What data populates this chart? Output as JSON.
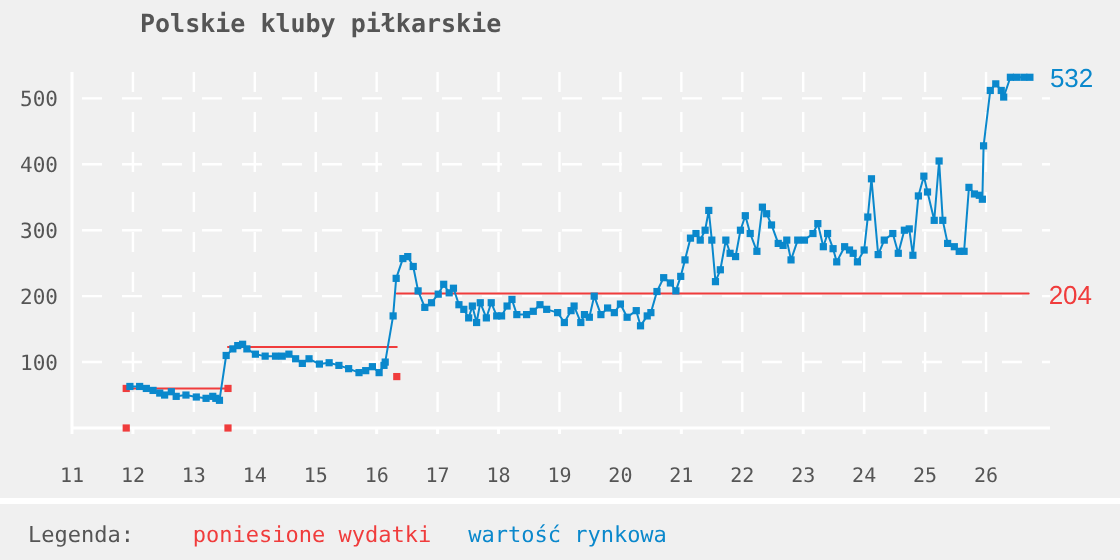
{
  "chart_data": {
    "type": "line",
    "title": "Polskie kluby piłkarskie",
    "legend_title": "Legenda:",
    "legend": "bottom",
    "grid": true,
    "xlim": [
      11,
      27.05
    ],
    "xticks": [
      11,
      12,
      13,
      14,
      15,
      16,
      17,
      18,
      19,
      20,
      21,
      22,
      23,
      24,
      25,
      26
    ],
    "ylim": [
      0,
      540
    ],
    "yticks": [
      100,
      200,
      300,
      400,
      500
    ],
    "series": [
      {
        "name": "poniesione wydatki",
        "type": "line",
        "marker": "none",
        "color": "#f03c3c",
        "x": [
          11.89,
          13.56,
          null,
          13.56,
          16.33,
          null,
          16.33,
          26.7
        ],
        "values": [
          60,
          60,
          null,
          123,
          123,
          null,
          204,
          204
        ],
        "value_labels": [
          null,
          null,
          null,
          null,
          null,
          null,
          null,
          "204"
        ]
      },
      {
        "type": "scatter",
        "marker": "square",
        "color": "#f03c3c",
        "x": [
          11.89,
          11.89,
          13.56,
          13.56,
          16.33
        ],
        "values": [
          60,
          0,
          60,
          0,
          78
        ]
      },
      {
        "name": "wartość rynkowa",
        "type": "line",
        "marker": "square",
        "color": "#0a88cc",
        "x": [
          11.95,
          12.11,
          12.22,
          12.33,
          12.44,
          12.52,
          12.63,
          12.71,
          12.87,
          13.04,
          13.2,
          13.31,
          13.36,
          13.42,
          13.53,
          13.64,
          13.72,
          13.8,
          13.87,
          14.01,
          14.17,
          14.34,
          14.45,
          14.56,
          14.67,
          14.78,
          14.89,
          15.06,
          15.22,
          15.38,
          15.54,
          15.71,
          15.82,
          15.93,
          16.04,
          16.12,
          16.14,
          16.27,
          16.32,
          16.43,
          16.51,
          16.6,
          16.68,
          16.79,
          16.9,
          17.01,
          17.1,
          17.19,
          17.26,
          17.35,
          17.43,
          17.51,
          17.57,
          17.64,
          17.7,
          17.8,
          17.88,
          17.97,
          18.05,
          18.14,
          18.22,
          18.3,
          18.46,
          18.57,
          18.68,
          18.79,
          18.97,
          19.08,
          19.19,
          19.24,
          19.35,
          19.41,
          19.49,
          19.57,
          19.68,
          19.79,
          19.9,
          20.0,
          20.11,
          20.26,
          20.33,
          20.44,
          20.5,
          20.6,
          20.71,
          20.82,
          20.91,
          20.99,
          21.06,
          21.15,
          21.24,
          21.31,
          21.39,
          21.45,
          21.5,
          21.56,
          21.64,
          21.73,
          21.8,
          21.89,
          21.97,
          22.05,
          22.13,
          22.24,
          22.33,
          22.4,
          22.48,
          22.59,
          22.67,
          22.73,
          22.8,
          22.91,
          23.02,
          23.16,
          23.24,
          23.33,
          23.4,
          23.49,
          23.55,
          23.68,
          23.76,
          23.82,
          23.89,
          24.0,
          24.06,
          24.12,
          24.23,
          24.33,
          24.47,
          24.56,
          24.66,
          24.74,
          24.8,
          24.89,
          24.98,
          25.04,
          25.15,
          25.23,
          25.29,
          25.37,
          25.48,
          25.56,
          25.64,
          25.72,
          25.81,
          25.89,
          25.94,
          25.96,
          26.07,
          26.16,
          26.25,
          26.29,
          26.4,
          26.5,
          26.62,
          26.72
        ],
        "values": [
          63,
          63,
          60,
          57,
          53,
          50,
          55,
          48,
          50,
          47,
          45,
          48,
          45,
          42,
          110,
          120,
          125,
          127,
          120,
          112,
          109,
          109,
          109,
          112,
          105,
          98,
          105,
          97,
          99,
          95,
          90,
          84,
          87,
          93,
          84,
          95,
          100,
          170,
          227,
          257,
          260,
          245,
          208,
          183,
          190,
          203,
          218,
          205,
          212,
          187,
          180,
          167,
          185,
          160,
          190,
          167,
          190,
          170,
          170,
          185,
          195,
          172,
          172,
          177,
          187,
          180,
          175,
          160,
          178,
          185,
          160,
          172,
          168,
          200,
          172,
          182,
          175,
          188,
          168,
          178,
          155,
          170,
          175,
          207,
          228,
          220,
          208,
          230,
          255,
          288,
          295,
          285,
          300,
          330,
          285,
          222,
          240,
          285,
          265,
          260,
          300,
          322,
          295,
          268,
          335,
          325,
          308,
          280,
          277,
          285,
          255,
          285,
          285,
          295,
          310,
          275,
          295,
          272,
          252,
          275,
          270,
          265,
          252,
          270,
          320,
          378,
          263,
          285,
          295,
          265,
          300,
          302,
          262,
          352,
          382,
          358,
          315,
          405,
          315,
          280,
          275,
          268,
          268,
          365,
          355,
          353,
          347,
          428,
          512,
          522,
          512,
          502,
          532,
          532,
          532,
          532
        ],
        "value_labels": [
          null,
          null,
          null,
          null,
          null,
          null,
          null,
          null,
          null,
          null,
          null,
          null,
          null,
          null,
          null,
          null,
          null,
          null,
          null,
          null,
          null,
          null,
          null,
          null,
          null,
          null,
          null,
          null,
          null,
          null,
          null,
          null,
          null,
          null,
          null,
          null,
          null,
          null,
          null,
          null,
          null,
          null,
          null,
          null,
          null,
          null,
          null,
          null,
          null,
          null,
          null,
          null,
          null,
          null,
          null,
          null,
          null,
          null,
          null,
          null,
          null,
          null,
          null,
          null,
          null,
          null,
          null,
          null,
          null,
          null,
          null,
          null,
          null,
          null,
          null,
          null,
          null,
          null,
          null,
          null,
          null,
          null,
          null,
          null,
          null,
          null,
          null,
          null,
          null,
          null,
          null,
          null,
          null,
          null,
          null,
          null,
          null,
          null,
          null,
          null,
          null,
          null,
          null,
          null,
          null,
          null,
          null,
          null,
          null,
          null,
          null,
          null,
          null,
          null,
          null,
          null,
          null,
          null,
          null,
          null,
          null,
          null,
          null,
          null,
          null,
          null,
          null,
          null,
          null,
          null,
          null,
          null,
          null,
          null,
          null,
          null,
          null,
          null,
          null,
          null,
          null,
          null,
          null,
          null,
          null,
          null,
          null,
          null,
          null,
          null,
          null,
          null,
          null,
          null,
          null,
          "532"
        ]
      }
    ]
  }
}
